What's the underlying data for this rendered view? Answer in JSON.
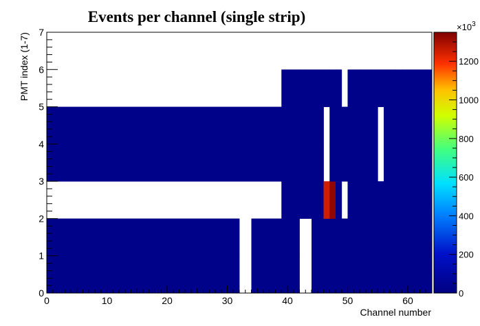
{
  "chart_data": {
    "type": "heatmap",
    "title": "Events per channel (single strip)",
    "xlabel": "Channel number",
    "ylabel": "PMT index (1-7)",
    "xlim": [
      0,
      64
    ],
    "ylim": [
      0,
      7
    ],
    "x_ticks": [
      0,
      10,
      20,
      30,
      40,
      50,
      60
    ],
    "y_ticks": [
      0,
      1,
      2,
      3,
      4,
      5,
      6,
      7
    ],
    "colorbar": {
      "range": [
        0,
        1350
      ],
      "ticks": [
        0,
        200,
        400,
        600,
        800,
        1000,
        1200
      ],
      "multiplier": "×10",
      "multiplier_exp": "3"
    },
    "cell_width": 1,
    "cell_height": 1,
    "default_value": 25,
    "rows": [
      {
        "y": 0,
        "filled_x": [
          0,
          64
        ],
        "empty_x": [
          32,
          33,
          42,
          43
        ],
        "hot_x": []
      },
      {
        "y": 1,
        "filled_x": [
          0,
          64
        ],
        "empty_x": [
          32,
          33,
          42,
          43
        ],
        "hot_x": []
      },
      {
        "y": 2,
        "filled_x": [
          39,
          64
        ],
        "empty_x": [
          49
        ],
        "hot_x": [
          [
            46,
            1250
          ],
          [
            47,
            1330
          ]
        ]
      },
      {
        "y": 3,
        "filled_x": [
          0,
          64
        ],
        "empty_x": [
          46,
          55
        ],
        "hot_x": []
      },
      {
        "y": 4,
        "filled_x": [
          0,
          64
        ],
        "empty_x": [
          46,
          55
        ],
        "hot_x": []
      },
      {
        "y": 5,
        "filled_x": [
          39,
          64
        ],
        "empty_x": [
          49
        ],
        "hot_x": []
      }
    ]
  }
}
